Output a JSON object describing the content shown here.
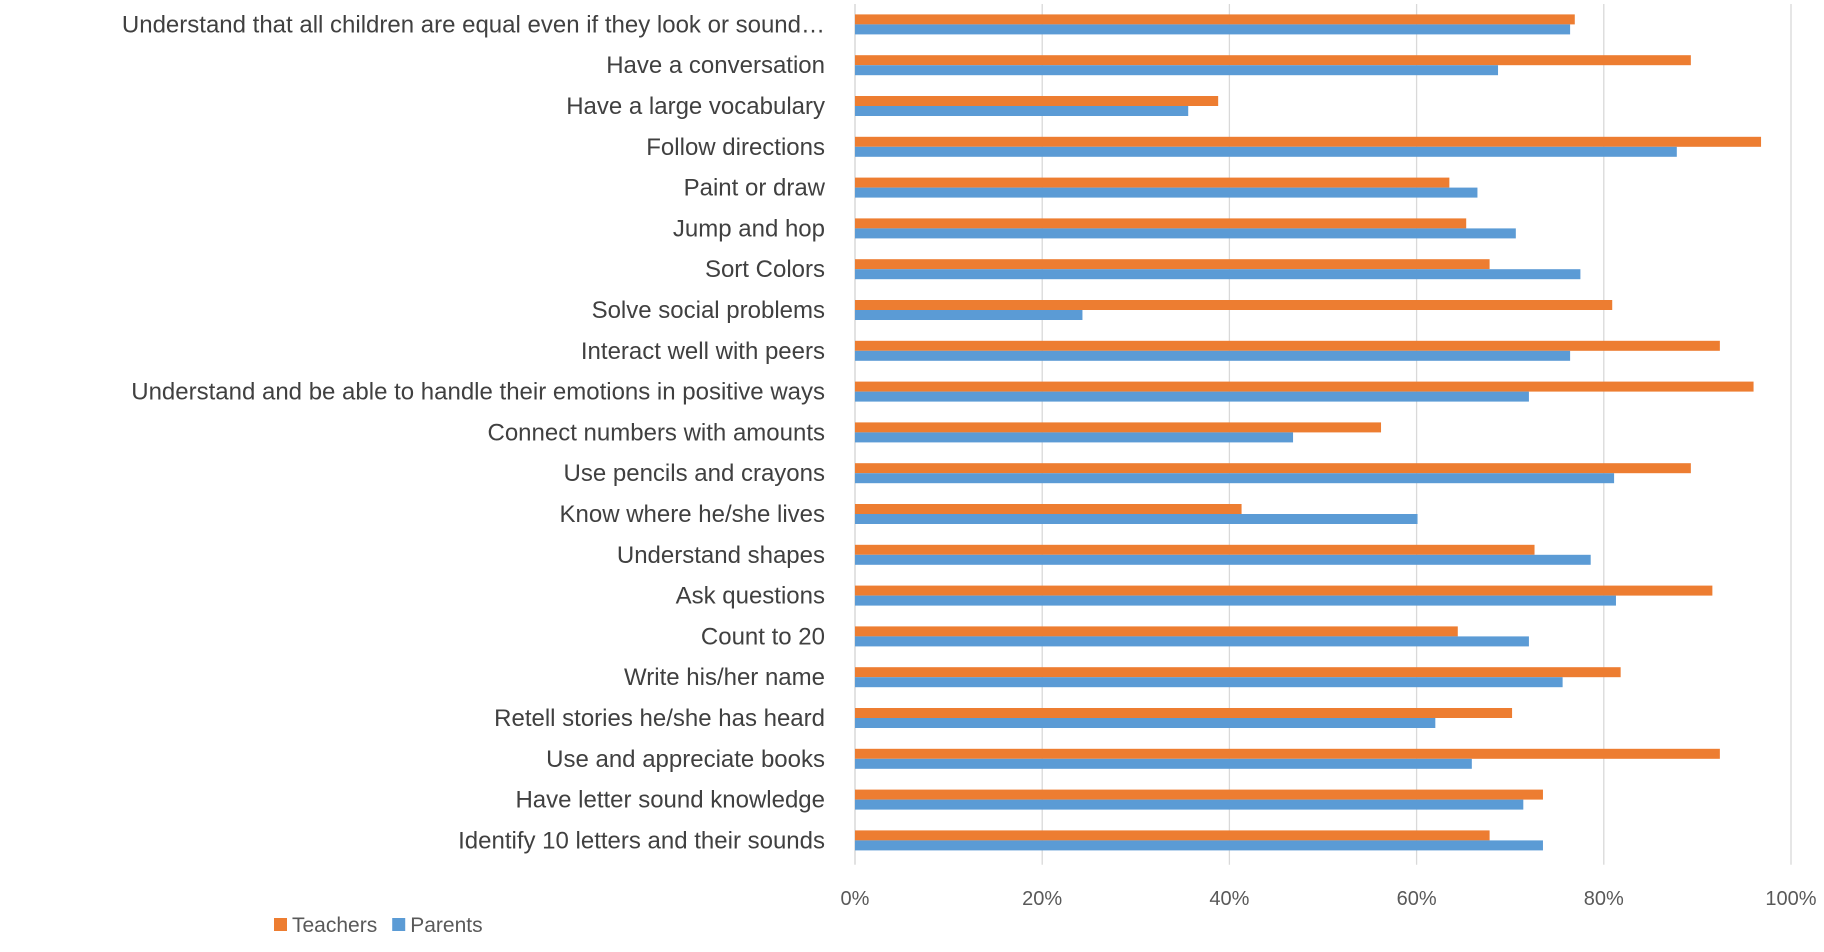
{
  "chart_data": {
    "type": "bar",
    "orientation": "horizontal",
    "title": "",
    "xlabel": "",
    "ylabel": "",
    "xlim": [
      0,
      100
    ],
    "x_tick_labels": [
      "0%",
      "20%",
      "40%",
      "60%",
      "80%",
      "100%"
    ],
    "x_ticks": [
      0,
      20,
      40,
      60,
      80,
      100
    ],
    "grid": "vertical",
    "legend_position": "bottom-left",
    "categories": [
      "Understand that all children are equal even if they look or sound…",
      "Have a conversation",
      "Have a large vocabulary",
      "Follow directions",
      "Paint or draw",
      "Jump and hop",
      "Sort Colors",
      "Solve social problems",
      "Interact well with peers",
      "Understand and be able to handle their emotions in positive ways",
      "Connect numbers with amounts",
      "Use pencils and crayons",
      "Know where he/she lives",
      "Understand shapes",
      "Ask questions",
      "Count to 20",
      "Write his/her name",
      "Retell stories he/she has heard",
      "Use and appreciate books",
      "Have letter sound knowledge",
      "Identify 10 letters and their sounds"
    ],
    "series": [
      {
        "name": "Teachers",
        "color": "#ED7D31",
        "values": [
          76.9,
          89.3,
          38.8,
          96.8,
          63.5,
          65.3,
          67.8,
          80.9,
          92.4,
          96.0,
          56.2,
          89.3,
          41.3,
          72.6,
          91.6,
          64.4,
          81.8,
          70.2,
          92.4,
          73.5,
          67.8
        ]
      },
      {
        "name": "Parents",
        "color": "#5B9BD5",
        "values": [
          76.4,
          68.7,
          35.6,
          87.8,
          66.5,
          70.6,
          77.5,
          24.3,
          76.4,
          72.0,
          46.8,
          81.1,
          60.1,
          78.6,
          81.3,
          72.0,
          75.6,
          62.0,
          65.9,
          71.4,
          73.5
        ]
      }
    ]
  }
}
